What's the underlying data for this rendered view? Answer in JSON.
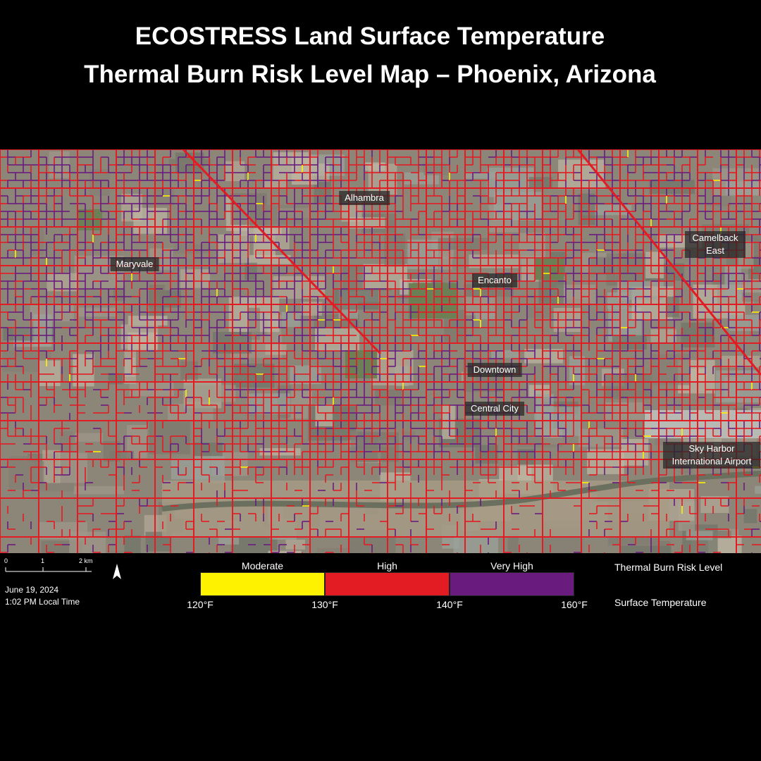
{
  "title": [
    "ECOSTRESS Land Surface Temperature",
    "Thermal Burn Risk Level Map – Phoenix, Arizona"
  ],
  "places": [
    "Alhambra",
    "Maryvale",
    "Encanto",
    "Camelback East",
    "Downtown",
    "Central City",
    "Sky Harbor International Airport"
  ],
  "scale_bar": {
    "labels": [
      "0",
      "1",
      "2 km"
    ]
  },
  "date": "June 19, 2024",
  "time": "1:02 PM Local Time",
  "legend": {
    "classes": [
      {
        "name": "Moderate",
        "color": "#fff200"
      },
      {
        "name": "High",
        "color": "#e31b23"
      },
      {
        "name": "Very High",
        "color": "#6a1b7e"
      }
    ],
    "ticks": [
      "120°F",
      "130°F",
      "140°F",
      "160°F"
    ],
    "class_title": "Thermal Burn Risk Level",
    "tick_title": "Surface Temperature"
  }
}
